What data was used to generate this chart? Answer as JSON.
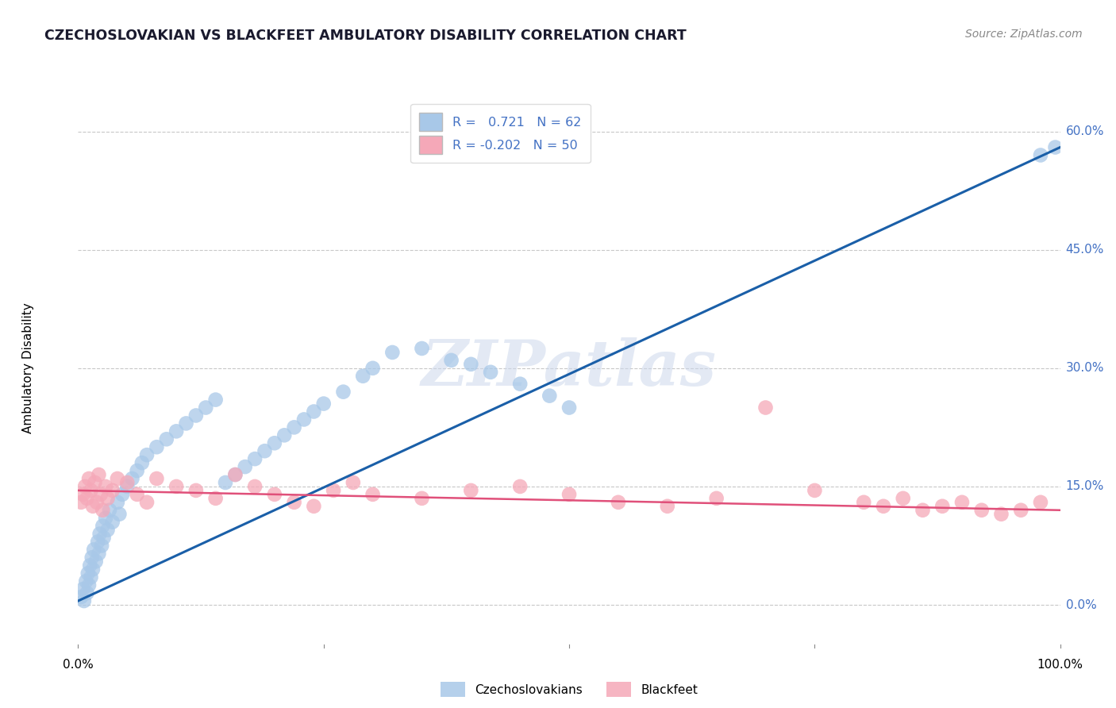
{
  "title": "CZECHOSLOVAKIAN VS BLACKFEET AMBULATORY DISABILITY CORRELATION CHART",
  "source": "Source: ZipAtlas.com",
  "ylabel": "Ambulatory Disability",
  "xlim": [
    0,
    100
  ],
  "ylim": [
    -5,
    65
  ],
  "ytick_labels": [
    "0.0%",
    "15.0%",
    "30.0%",
    "45.0%",
    "60.0%"
  ],
  "ytick_values": [
    0,
    15,
    30,
    45,
    60
  ],
  "xtick_positions": [
    0,
    25,
    50,
    75,
    100
  ],
  "grid_color": "#c8c8c8",
  "background_color": "#ffffff",
  "watermark_text": "ZIPatlas",
  "blue_scatter_color": "#a8c8e8",
  "pink_scatter_color": "#f5a8b8",
  "blue_line_color": "#1a5fa8",
  "pink_line_color": "#e0507a",
  "R_blue": 0.721,
  "N_blue": 62,
  "R_pink": -0.202,
  "N_pink": 50,
  "legend_label_blue": "Czechoslovakians",
  "legend_label_pink": "Blackfeet",
  "blue_legend_patch": "#a8c8e8",
  "pink_legend_patch": "#f5a8b8",
  "annotation_color": "#4472c4",
  "czecho_x": [
    0.3,
    0.5,
    0.6,
    0.8,
    0.9,
    1.0,
    1.1,
    1.2,
    1.3,
    1.4,
    1.5,
    1.6,
    1.8,
    2.0,
    2.1,
    2.2,
    2.4,
    2.5,
    2.6,
    2.8,
    3.0,
    3.2,
    3.5,
    4.0,
    4.2,
    4.5,
    5.0,
    5.5,
    6.0,
    6.5,
    7.0,
    8.0,
    9.0,
    10.0,
    11.0,
    12.0,
    13.0,
    14.0,
    15.0,
    16.0,
    17.0,
    18.0,
    19.0,
    20.0,
    21.0,
    22.0,
    23.0,
    24.0,
    25.0,
    27.0,
    29.0,
    30.0,
    32.0,
    35.0,
    38.0,
    40.0,
    42.0,
    45.0,
    48.0,
    50.0,
    98.0,
    99.5
  ],
  "czecho_y": [
    1.0,
    2.0,
    0.5,
    3.0,
    1.5,
    4.0,
    2.5,
    5.0,
    3.5,
    6.0,
    4.5,
    7.0,
    5.5,
    8.0,
    6.5,
    9.0,
    7.5,
    10.0,
    8.5,
    11.0,
    9.5,
    12.0,
    10.5,
    13.0,
    11.5,
    14.0,
    15.0,
    16.0,
    17.0,
    18.0,
    19.0,
    20.0,
    21.0,
    22.0,
    23.0,
    24.0,
    25.0,
    26.0,
    15.5,
    16.5,
    17.5,
    18.5,
    19.5,
    20.5,
    21.5,
    22.5,
    23.5,
    24.5,
    25.5,
    27.0,
    29.0,
    30.0,
    32.0,
    32.5,
    31.0,
    30.5,
    29.5,
    28.0,
    26.5,
    25.0,
    57.0,
    58.0
  ],
  "blackfeet_x": [
    0.3,
    0.5,
    0.7,
    0.9,
    1.1,
    1.3,
    1.5,
    1.7,
    1.9,
    2.1,
    2.3,
    2.5,
    2.8,
    3.0,
    3.5,
    4.0,
    5.0,
    6.0,
    7.0,
    8.0,
    10.0,
    12.0,
    14.0,
    16.0,
    18.0,
    20.0,
    22.0,
    24.0,
    26.0,
    28.0,
    30.0,
    35.0,
    40.0,
    45.0,
    50.0,
    55.0,
    60.0,
    65.0,
    70.0,
    75.0,
    80.0,
    82.0,
    84.0,
    86.0,
    88.0,
    90.0,
    92.0,
    94.0,
    96.0,
    98.0
  ],
  "blackfeet_y": [
    13.0,
    14.0,
    15.0,
    13.5,
    16.0,
    14.5,
    12.5,
    15.5,
    13.0,
    16.5,
    14.0,
    12.0,
    15.0,
    13.5,
    14.5,
    16.0,
    15.5,
    14.0,
    13.0,
    16.0,
    15.0,
    14.5,
    13.5,
    16.5,
    15.0,
    14.0,
    13.0,
    12.5,
    14.5,
    15.5,
    14.0,
    13.5,
    14.5,
    15.0,
    14.0,
    13.0,
    12.5,
    13.5,
    25.0,
    14.5,
    13.0,
    12.5,
    13.5,
    12.0,
    12.5,
    13.0,
    12.0,
    11.5,
    12.0,
    13.0
  ],
  "blue_reg_x0": 0,
  "blue_reg_y0": 0.5,
  "blue_reg_x1": 100,
  "blue_reg_y1": 58.0,
  "pink_reg_x0": 0,
  "pink_reg_y0": 14.5,
  "pink_reg_x1": 100,
  "pink_reg_y1": 12.0
}
